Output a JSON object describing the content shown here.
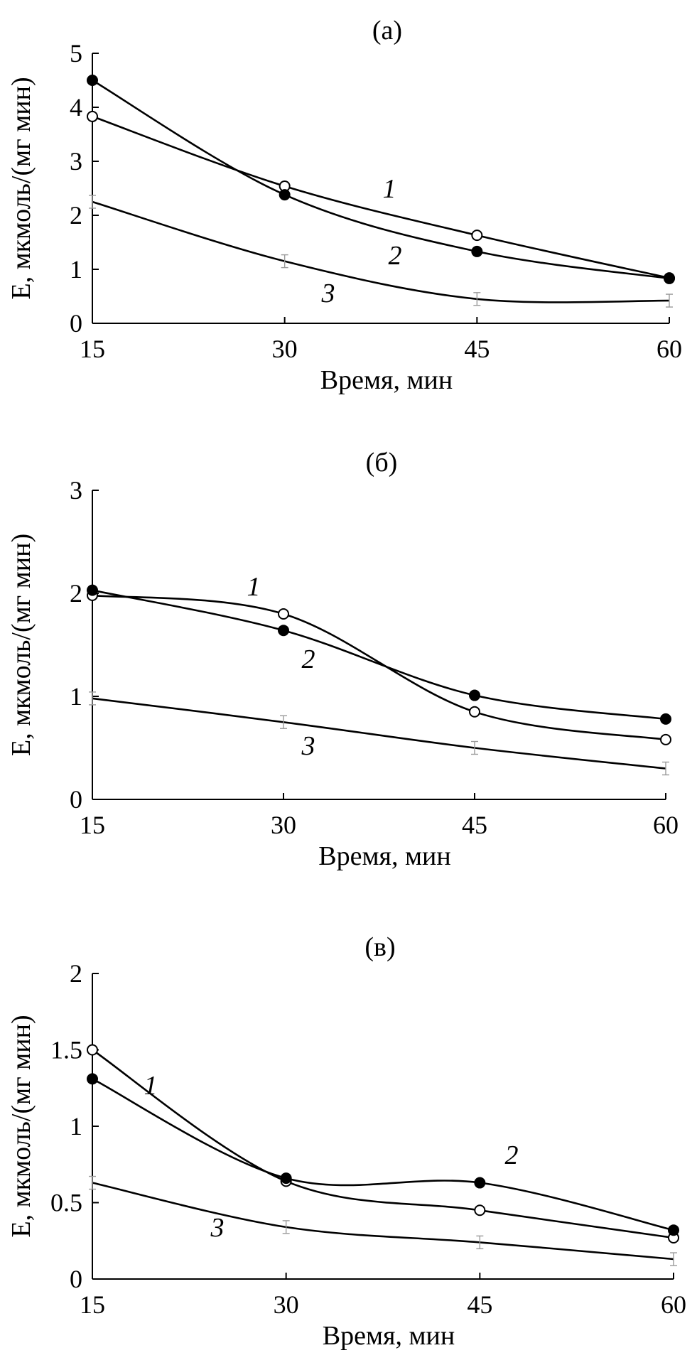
{
  "chart_data": [
    {
      "type": "line",
      "title": "(а)",
      "xlabel": "Время, мин",
      "ylabel": "E, мкмоль/(мг мин)",
      "x": [
        15,
        30,
        45,
        60
      ],
      "x_tick_labels": [
        "15",
        "30",
        "45",
        "60"
      ],
      "xlim": [
        15,
        60
      ],
      "ylim": [
        0,
        5
      ],
      "y_ticks": [
        0,
        1,
        2,
        3,
        4,
        5
      ],
      "y_tick_labels": [
        "0",
        "1",
        "2",
        "3",
        "4",
        "5"
      ],
      "grid": false,
      "series": [
        {
          "name": "1",
          "marker": "open-circle",
          "values": [
            3.83,
            2.54,
            1.63,
            0.84
          ]
        },
        {
          "name": "2",
          "marker": "filled-circle",
          "values": [
            4.5,
            2.38,
            1.33,
            0.83
          ]
        },
        {
          "name": "3",
          "marker": "none",
          "values": [
            2.25,
            1.15,
            0.45,
            0.42
          ]
        }
      ],
      "curve_labels": [
        "1",
        "2",
        "3"
      ]
    },
    {
      "type": "line",
      "title": "(б)",
      "xlabel": "Время, мин",
      "ylabel": "E, мкмоль/(мг мин)",
      "x": [
        15,
        30,
        45,
        60
      ],
      "x_tick_labels": [
        "15",
        "30",
        "45",
        "60"
      ],
      "xlim": [
        15,
        60
      ],
      "ylim": [
        0,
        3
      ],
      "y_ticks": [
        0,
        1,
        2,
        3
      ],
      "y_tick_labels": [
        "0",
        "1",
        "2",
        "3"
      ],
      "grid": false,
      "series": [
        {
          "name": "1",
          "marker": "open-circle",
          "values": [
            1.98,
            1.8,
            0.85,
            0.58
          ]
        },
        {
          "name": "2",
          "marker": "filled-circle",
          "values": [
            2.03,
            1.64,
            1.01,
            0.78
          ]
        },
        {
          "name": "3",
          "marker": "none",
          "values": [
            0.98,
            0.75,
            0.5,
            0.3
          ]
        }
      ],
      "curve_labels": [
        "1",
        "2",
        "3"
      ]
    },
    {
      "type": "line",
      "title": "(в)",
      "xlabel": "Время, мин",
      "ylabel": "E, мкмоль/(мг мин)",
      "x": [
        15,
        30,
        45,
        60
      ],
      "x_tick_labels": [
        "15",
        "30",
        "45",
        "60"
      ],
      "xlim": [
        15,
        60
      ],
      "ylim": [
        0,
        2
      ],
      "y_ticks": [
        0,
        0.5,
        1,
        1.5,
        2
      ],
      "y_tick_labels": [
        "0",
        "0.5",
        "1",
        "1.5",
        "2"
      ],
      "grid": false,
      "series": [
        {
          "name": "1",
          "marker": "open-circle",
          "values": [
            1.5,
            0.64,
            0.45,
            0.27
          ]
        },
        {
          "name": "2",
          "marker": "filled-circle",
          "values": [
            1.31,
            0.66,
            0.63,
            0.32
          ]
        },
        {
          "name": "3",
          "marker": "none",
          "values": [
            0.63,
            0.34,
            0.24,
            0.13
          ]
        }
      ],
      "curve_labels": [
        "1",
        "2",
        "3"
      ]
    }
  ]
}
